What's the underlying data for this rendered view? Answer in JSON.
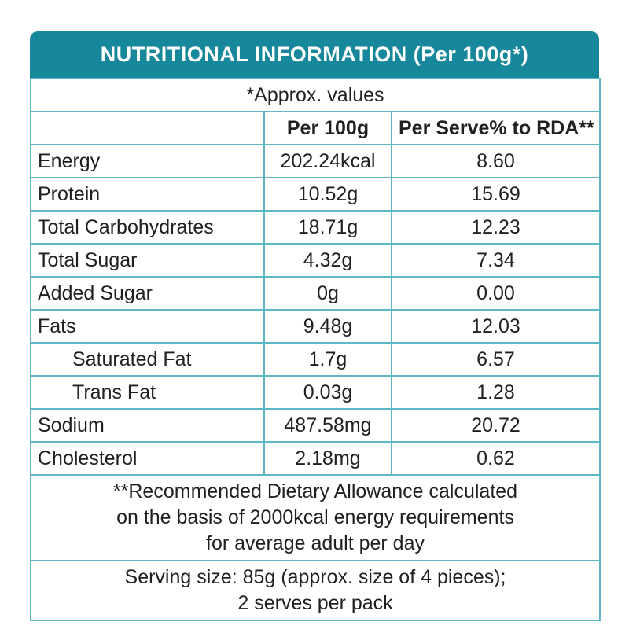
{
  "header": {
    "title": "NUTRITIONAL INFORMATION (Per 100g*)"
  },
  "table": {
    "approx_note": "*Approx. values",
    "columns": [
      "",
      "Per 100g",
      "Per Serve% to RDA**"
    ],
    "rows": [
      {
        "label": "Energy",
        "per_100g": "202.24kcal",
        "per_serve_rda": "8.60",
        "indent": false
      },
      {
        "label": "Protein",
        "per_100g": "10.52g",
        "per_serve_rda": "15.69",
        "indent": false
      },
      {
        "label": "Total Carbohydrates",
        "per_100g": "18.71g",
        "per_serve_rda": "12.23",
        "indent": false
      },
      {
        "label": "Total Sugar",
        "per_100g": "4.32g",
        "per_serve_rda": "7.34",
        "indent": false
      },
      {
        "label": "Added Sugar",
        "per_100g": "0g",
        "per_serve_rda": "0.00",
        "indent": false
      },
      {
        "label": "Fats",
        "per_100g": "9.48g",
        "per_serve_rda": "12.03",
        "indent": false
      },
      {
        "label": "Saturated Fat",
        "per_100g": "1.7g",
        "per_serve_rda": "6.57",
        "indent": true
      },
      {
        "label": "Trans Fat",
        "per_100g": "0.03g",
        "per_serve_rda": "1.28",
        "indent": true
      },
      {
        "label": "Sodium",
        "per_100g": "487.58mg",
        "per_serve_rda": "20.72",
        "indent": false
      },
      {
        "label": "Cholesterol",
        "per_100g": "2.18mg",
        "per_serve_rda": "0.62",
        "indent": false
      }
    ],
    "rda_note_lines": [
      "**Recommended Dietary Allowance calculated",
      "on the basis of 2000kcal energy requirements",
      "for average adult per day"
    ],
    "serving_note_lines": [
      "Serving size: 85g (approx. size of 4 pieces);",
      "2 serves per pack"
    ]
  },
  "colors": {
    "header_bg": "#17879B",
    "grid": "#5FB6C8",
    "text": "#221F20"
  }
}
